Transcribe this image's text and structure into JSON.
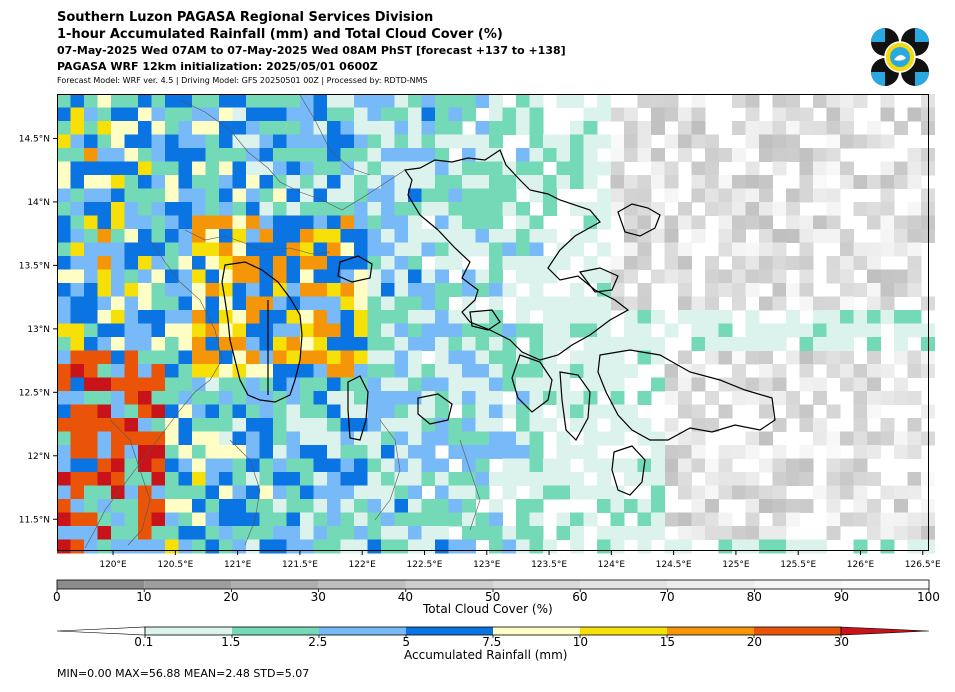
{
  "header": {
    "title1": "Southern Luzon PAGASA Regional Services Division",
    "title2": "1-hour Accumulated Rainfall (mm) and Total Cloud Cover (%)",
    "title3": "07-May-2025 Wed 07AM to 07-May-2025 Wed 08AM PhST [forecast +137 to +138]",
    "title4": "PAGASA WRF 12km initialization: 2025/05/01 0600Z",
    "subtitle": "Forecast Model: WRF ver. 4.5 | Driving Model: GFS 20250501 00Z | Processed by: RDTD-NMS"
  },
  "map": {
    "lon_ticks": [
      "120°E",
      "120.5°E",
      "121°E",
      "121.5°E",
      "122°E",
      "122.5°E",
      "123°E",
      "123.5°E",
      "124°E",
      "124.5°E",
      "125°E",
      "125.5°E",
      "126°E",
      "126.5°E"
    ],
    "lat_ticks": [
      "14.5°N",
      "14°N",
      "13.5°N",
      "13°N",
      "12.5°N",
      "12°N",
      "11.5°N"
    ],
    "extent_lon": [
      119.55,
      126.55
    ],
    "extent_lat": [
      11.25,
      14.85
    ]
  },
  "cloud_colorbar": {
    "title": "Total Cloud Cover (%)",
    "labels": [
      "0",
      "10",
      "20",
      "30",
      "40",
      "50",
      "60",
      "70",
      "80",
      "90",
      "100"
    ],
    "colors": [
      "#8c8c8c",
      "#9e9e9e",
      "#afafaf",
      "#bfbfbf",
      "#cecece",
      "#dadada",
      "#e4e4e4",
      "#ededed",
      "#f5f5f5",
      "#fbfbfb"
    ]
  },
  "rain_colorbar": {
    "title": "Accumulated Rainfall (mm)",
    "labels": [
      "0.1",
      "1.5",
      "2.5",
      "5",
      "7.5",
      "10",
      "15",
      "20",
      "30"
    ],
    "colors": [
      "#ffffff",
      "#dbf3ec",
      "#74d9b7",
      "#78b9f7",
      "#0a74e2",
      "#fffec4",
      "#f6e007",
      "#f49607",
      "#ea5409",
      "#c8131b"
    ]
  },
  "stats": "MIN=0.00   MAX=56.88   MEAN=2.48   STD=5.07"
}
